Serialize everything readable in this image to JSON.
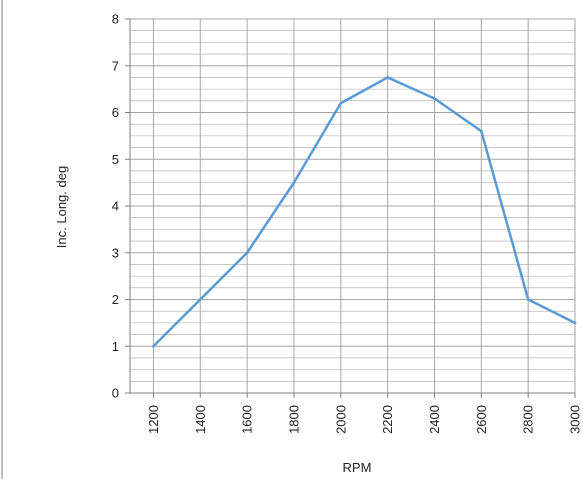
{
  "chart_data": {
    "type": "line",
    "xlabel": "RPM",
    "ylabel": "Inc. Long. deg",
    "categories": [
      "1200",
      "1400",
      "1600",
      "1800",
      "2000",
      "2200",
      "2400",
      "2600",
      "2800",
      "3000"
    ],
    "series": [
      {
        "values": [
          1.0,
          2.0,
          3.0,
          4.5,
          6.2,
          6.75,
          6.3,
          5.6,
          2.0,
          1.5
        ]
      }
    ],
    "ylim": [
      0,
      8
    ],
    "yticks": [
      "0",
      "1",
      "2",
      "3",
      "4",
      "5",
      "6",
      "7",
      "8"
    ],
    "grid": true,
    "legend": "none",
    "colors": {
      "line": "#5b9bd5",
      "grid": "#a6a6a6",
      "axis": "#7f7f7f"
    }
  }
}
